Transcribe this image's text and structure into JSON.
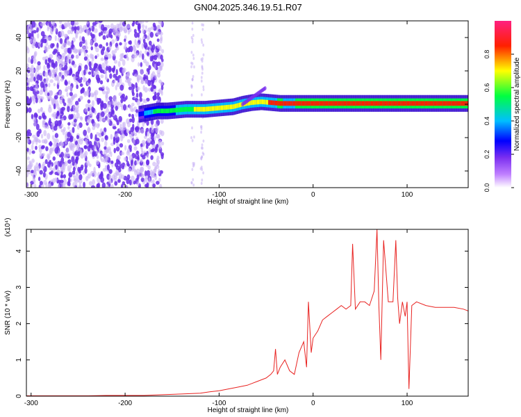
{
  "title": "GN04.2025.346.19.51.R07",
  "colors": {
    "frame": "#000000",
    "snr_line": "#e8211f",
    "scatter_primary": "#6a2ee8",
    "scatter_light": "#c9b3f5"
  },
  "chart_data": [
    {
      "type": "heatmap",
      "title": "GN04.2025.346.19.51.R07",
      "xlabel": "Height of straight line (km)",
      "ylabel": "Frequency (Hz)",
      "xlim": [
        -305,
        165
      ],
      "ylim": [
        -50,
        50
      ],
      "xticks": [
        -300,
        -200,
        -100,
        0,
        100
      ],
      "yticks": [
        -40,
        -20,
        0,
        20,
        40
      ],
      "colorbar": {
        "label": "Normalized spectral amplitude",
        "range": [
          0,
          1
        ],
        "ticks": [
          "0.0",
          "0.2",
          "0.4",
          "0.6",
          "0.8"
        ],
        "colormap": [
          "#ffffff",
          "#7b2ff0",
          "#0000ff",
          "#00bfff",
          "#00ff40",
          "#ffff00",
          "#ff2000",
          "#ff2080"
        ]
      },
      "ridge": {
        "x": [
          -185,
          -175,
          -165,
          -155,
          -145,
          -135,
          -125,
          -115,
          -105,
          -95,
          -85,
          -75,
          -65,
          -55,
          -45,
          -35,
          -25,
          -15,
          -5,
          5,
          15,
          25,
          35,
          45,
          55,
          65,
          75,
          85,
          95,
          105,
          115,
          125,
          135,
          145,
          155,
          165
        ],
        "y": [
          -6,
          -5,
          -4,
          -4,
          -3.5,
          -3,
          -3,
          -3,
          -2.5,
          -2,
          -1.5,
          0,
          1,
          1.5,
          1,
          0.5,
          0.5,
          0.5,
          0.5,
          0.5,
          0.5,
          0.5,
          0.5,
          0.5,
          0.5,
          0.5,
          0.5,
          0.5,
          0.5,
          0.5,
          0.5,
          0.5,
          0.5,
          0.5,
          0.5,
          0.5
        ],
        "amplitude": [
          0.25,
          0.45,
          0.55,
          0.55,
          0.6,
          0.6,
          0.65,
          0.7,
          0.75,
          0.75,
          0.7,
          0.7,
          0.7,
          0.75,
          0.8,
          0.85,
          0.8,
          0.85,
          0.85,
          0.85,
          0.85,
          0.85,
          0.85,
          0.85,
          0.85,
          0.85,
          0.85,
          0.85,
          0.85,
          0.85,
          0.85,
          0.85,
          0.85,
          0.85,
          0.85,
          0.85
        ]
      }
    },
    {
      "type": "line",
      "xlabel": "Height of straight line (km)",
      "ylabel": "SNR (10 * v/v)",
      "yscale_label": "(x10⁴)",
      "xlim": [
        -305,
        165
      ],
      "ylim": [
        0,
        4.6
      ],
      "xticks": [
        -300,
        -200,
        -100,
        0,
        100
      ],
      "yticks": [
        0,
        1,
        2,
        3,
        4
      ],
      "series": [
        {
          "x": [
            -305,
            -280,
            -260,
            -240,
            -220,
            -200,
            -180,
            -160,
            -140,
            -120,
            -110,
            -100,
            -90,
            -80,
            -70,
            -65,
            -60,
            -55,
            -50,
            -45,
            -42,
            -40,
            -38,
            -35,
            -30,
            -25,
            -20,
            -15,
            -10,
            -7,
            -5,
            -2,
            0,
            5,
            10,
            15,
            20,
            25,
            30,
            35,
            40,
            42,
            45,
            50,
            55,
            60,
            65,
            68,
            70,
            72,
            75,
            80,
            85,
            88,
            90,
            92,
            95,
            98,
            100,
            102,
            105,
            110,
            120,
            130,
            140,
            150,
            160,
            165
          ],
          "y": [
            0.01,
            0.01,
            0.01,
            0.01,
            0.02,
            0.02,
            0.02,
            0.04,
            0.06,
            0.08,
            0.12,
            0.15,
            0.2,
            0.25,
            0.3,
            0.35,
            0.4,
            0.45,
            0.5,
            0.6,
            0.7,
            1.3,
            0.6,
            0.8,
            1.0,
            0.7,
            0.6,
            1.2,
            1.5,
            0.8,
            2.6,
            1.2,
            1.6,
            1.8,
            2.1,
            2.2,
            2.3,
            2.4,
            2.5,
            2.4,
            2.5,
            4.2,
            2.4,
            2.6,
            2.6,
            2.5,
            2.9,
            4.6,
            2.5,
            1.0,
            4.3,
            2.6,
            2.6,
            4.3,
            2.7,
            2.0,
            2.6,
            2.2,
            2.6,
            0.2,
            2.5,
            2.6,
            2.5,
            2.45,
            2.45,
            2.45,
            2.4,
            2.35
          ]
        }
      ]
    }
  ]
}
